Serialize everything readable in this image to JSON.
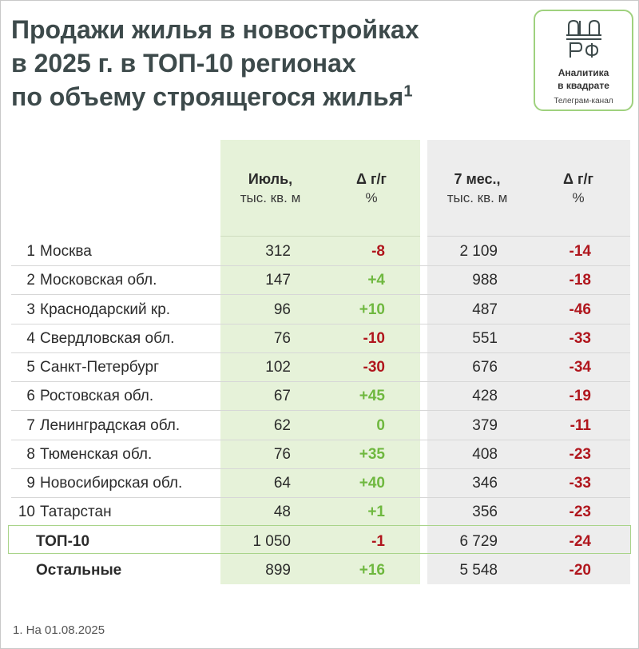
{
  "title": {
    "line1": "Продажи жилья в новостройках",
    "line2": "в 2025 г. в ТОП-10 регионах",
    "line3": "по объему строящегося жилья",
    "footnote_mark": "1"
  },
  "logo": {
    "line1": "Аналитика",
    "line2": "в квадрате",
    "line3": "Телеграм-канал"
  },
  "headers": {
    "july": "Июль,",
    "july_unit": "тыс. кв. м",
    "delta1": "Δ г/г",
    "delta1_unit": "%",
    "months7": "7 мес.,",
    "months7_unit": "тыс. кв. м",
    "delta2": "Δ г/г",
    "delta2_unit": "%"
  },
  "colors": {
    "negative": "#b0161d",
    "positive": "#6fb83f",
    "green_column": "#e6f2d9",
    "gray_column": "#ededed"
  },
  "chart_data": {
    "type": "table",
    "title": "Продажи жилья в новостройках в 2025 г. в ТОП-10 регионах по объему строящегося жилья",
    "columns": [
      "Июль, тыс. кв. м",
      "Δ г/г %",
      "7 мес., тыс. кв. м",
      "Δ г/г %"
    ],
    "rows": [
      {
        "num": "1",
        "name": "Москва",
        "july": "312",
        "delta1": "-8",
        "months7": "2 109",
        "delta2": "-14"
      },
      {
        "num": "2",
        "name": "Московская обл.",
        "july": "147",
        "delta1": "+4",
        "months7": "988",
        "delta2": "-18"
      },
      {
        "num": "3",
        "name": "Краснодарский кр.",
        "july": "96",
        "delta1": "+10",
        "months7": "487",
        "delta2": "-46"
      },
      {
        "num": "4",
        "name": "Свердловская обл.",
        "july": "76",
        "delta1": "-10",
        "months7": "551",
        "delta2": "-33"
      },
      {
        "num": "5",
        "name": "Санкт-Петербург",
        "july": "102",
        "delta1": "-30",
        "months7": "676",
        "delta2": "-34"
      },
      {
        "num": "6",
        "name": "Ростовская обл.",
        "july": "67",
        "delta1": "+45",
        "months7": "428",
        "delta2": "-19"
      },
      {
        "num": "7",
        "name": "Ленинградская обл.",
        "july": "62",
        "delta1": "0",
        "months7": "379",
        "delta2": "-11"
      },
      {
        "num": "8",
        "name": "Тюменская обл.",
        "july": "76",
        "delta1": "+35",
        "months7": "408",
        "delta2": "-23"
      },
      {
        "num": "9",
        "name": "Новосибирская обл.",
        "july": "64",
        "delta1": "+40",
        "months7": "346",
        "delta2": "-33"
      },
      {
        "num": "10",
        "name": "Татарстан",
        "july": "48",
        "delta1": "+1",
        "months7": "356",
        "delta2": "-23"
      }
    ],
    "totals": [
      {
        "name": "ТОП-10",
        "july": "1 050",
        "delta1": "-1",
        "months7": "6 729",
        "delta2": "-24"
      },
      {
        "name": "Остальные",
        "july": "899",
        "delta1": "+16",
        "months7": "5 548",
        "delta2": "-20"
      }
    ]
  },
  "footnote": "1. На 01.08.2025"
}
